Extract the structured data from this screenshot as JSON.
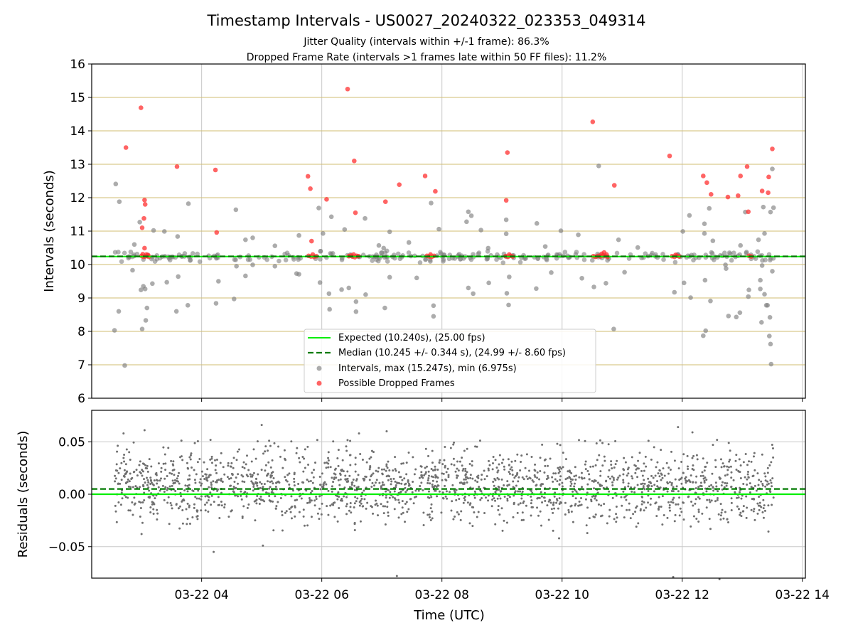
{
  "chart_data": [
    {
      "type": "scatter",
      "title": "Timestamp Intervals - US0027_20240322_023353_049314",
      "subtitle_lines": [
        "Jitter Quality (intervals within +/-1 frame): 86.3%",
        "Dropped Frame Rate (intervals >1 frames late within 50 FF files): 11.2%"
      ],
      "xlabel": "",
      "ylabel": "Intervals (seconds)",
      "xlim": [
        2.17,
        14.05
      ],
      "ylim": [
        6,
        16
      ],
      "yticks": [
        "6",
        "7",
        "8",
        "9",
        "10",
        "11",
        "12",
        "13",
        "14",
        "15",
        "16"
      ],
      "xticks": [
        {
          "value": 4,
          "label": "03-22 04"
        },
        {
          "value": 6,
          "label": "03-22 06"
        },
        {
          "value": 8,
          "label": "03-22 08"
        },
        {
          "value": 10,
          "label": "03-22 10"
        },
        {
          "value": 12,
          "label": "03-22 12"
        },
        {
          "value": 14,
          "label": "03-22 14"
        }
      ],
      "grid": true,
      "legend_position": "bottom-center",
      "colors": {
        "expected": "#00ee00",
        "median": "#007a00",
        "intervals": "#808080",
        "dropped": "#ff3030",
        "guides": "#d2bd72",
        "grid": "#c8c8c8"
      },
      "series": [
        {
          "name": "Expected (10.240s), (25.00 fps)",
          "kind": "line",
          "y": 10.24
        },
        {
          "name": "Median (10.245 +/- 0.344 s), (24.99 +/- 8.60 fps)",
          "kind": "dashed-line",
          "y": 10.245
        },
        {
          "name": "Intervals, max (15.247s), min (6.975s)",
          "kind": "scatter",
          "band": {
            "y": 10.24,
            "count": 260,
            "spread": 0.12
          },
          "points": [
            [
              2.57,
              12.41
            ],
            [
              2.63,
              11.88
            ],
            [
              2.55,
              8.03
            ],
            [
              2.62,
              8.6
            ],
            [
              2.72,
              6.98
            ],
            [
              2.85,
              9.83
            ],
            [
              2.88,
              10.6
            ],
            [
              2.97,
              11.27
            ],
            [
              2.99,
              9.24
            ],
            [
              3.01,
              8.07
            ],
            [
              3.03,
              9.35
            ],
            [
              3.06,
              9.27
            ],
            [
              3.07,
              8.33
            ],
            [
              3.09,
              8.7
            ],
            [
              3.18,
              9.43
            ],
            [
              3.2,
              11.02
            ],
            [
              3.38,
              10.99
            ],
            [
              3.42,
              9.47
            ],
            [
              3.6,
              10.84
            ],
            [
              3.61,
              9.64
            ],
            [
              3.58,
              8.6
            ],
            [
              3.77,
              8.78
            ],
            [
              3.78,
              11.82
            ],
            [
              4.24,
              8.84
            ],
            [
              4.28,
              9.5
            ],
            [
              4.57,
              11.64
            ],
            [
              4.54,
              8.97
            ],
            [
              4.58,
              9.95
            ],
            [
              4.73,
              9.66
            ],
            [
              4.73,
              10.74
            ],
            [
              4.85,
              9.99
            ],
            [
              4.85,
              10.8
            ],
            [
              5.22,
              9.95
            ],
            [
              5.22,
              10.56
            ],
            [
              5.58,
              9.73
            ],
            [
              5.62,
              9.71
            ],
            [
              5.62,
              10.87
            ],
            [
              5.98,
              10.4
            ],
            [
              5.97,
              9.46
            ],
            [
              5.95,
              11.69
            ],
            [
              6.02,
              10.93
            ],
            [
              6.12,
              9.13
            ],
            [
              6.13,
              8.66
            ],
            [
              6.16,
              11.43
            ],
            [
              6.33,
              9.25
            ],
            [
              6.38,
              11.05
            ],
            [
              6.45,
              9.3
            ],
            [
              6.57,
              8.89
            ],
            [
              6.57,
              8.59
            ],
            [
              6.72,
              11.38
            ],
            [
              6.73,
              9.1
            ],
            [
              6.95,
              10.57
            ],
            [
              7.03,
              10.49
            ],
            [
              7.05,
              8.7
            ],
            [
              7.13,
              9.62
            ],
            [
              7.13,
              10.98
            ],
            [
              7.45,
              10.66
            ],
            [
              7.58,
              9.6
            ],
            [
              7.82,
              11.84
            ],
            [
              7.86,
              8.77
            ],
            [
              7.86,
              8.45
            ],
            [
              7.95,
              11.06
            ],
            [
              8.01,
              10.23
            ],
            [
              8.41,
              11.28
            ],
            [
              8.44,
              11.58
            ],
            [
              8.44,
              9.3
            ],
            [
              8.49,
              11.46
            ],
            [
              8.52,
              9.13
            ],
            [
              8.65,
              11.03
            ],
            [
              8.77,
              10.49
            ],
            [
              8.78,
              9.45
            ],
            [
              9.07,
              11.34
            ],
            [
              9.07,
              10.92
            ],
            [
              9.08,
              9.14
            ],
            [
              9.11,
              8.79
            ],
            [
              9.12,
              9.63
            ],
            [
              9.58,
              11.23
            ],
            [
              9.57,
              9.28
            ],
            [
              9.72,
              10.54
            ],
            [
              9.82,
              9.76
            ],
            [
              9.98,
              11.01
            ],
            [
              10.27,
              10.89
            ],
            [
              10.33,
              9.59
            ],
            [
              10.53,
              9.33
            ],
            [
              10.61,
              12.95
            ],
            [
              10.73,
              9.44
            ],
            [
              10.78,
              10.18
            ],
            [
              10.86,
              8.07
            ],
            [
              10.94,
              10.74
            ],
            [
              11.04,
              9.77
            ],
            [
              11.26,
              10.51
            ],
            [
              11.87,
              9.17
            ],
            [
              12.01,
              10.99
            ],
            [
              12.03,
              9.45
            ],
            [
              12.12,
              11.47
            ],
            [
              12.14,
              9.01
            ],
            [
              12.35,
              7.87
            ],
            [
              12.39,
              8.02
            ],
            [
              12.38,
              9.53
            ],
            [
              12.37,
              11.22
            ],
            [
              12.37,
              10.93
            ],
            [
              12.45,
              11.68
            ],
            [
              12.47,
              8.91
            ],
            [
              12.51,
              10.71
            ],
            [
              12.72,
              9.99
            ],
            [
              12.73,
              9.88
            ],
            [
              12.77,
              8.46
            ],
            [
              12.9,
              8.43
            ],
            [
              12.96,
              8.56
            ],
            [
              12.97,
              10.57
            ],
            [
              13.05,
              11.57
            ],
            [
              13.07,
              10.37
            ],
            [
              13.1,
              9.04
            ],
            [
              13.11,
              9.24
            ],
            [
              13.27,
              10.74
            ],
            [
              13.3,
              9.27
            ],
            [
              13.32,
              8.27
            ],
            [
              13.35,
              11.72
            ],
            [
              13.37,
              10.93
            ],
            [
              13.37,
              9.11
            ],
            [
              13.42,
              8.78
            ],
            [
              13.45,
              7.86
            ],
            [
              13.47,
              7.62
            ],
            [
              13.46,
              8.42
            ],
            [
              13.48,
              7.02
            ],
            [
              13.5,
              9.8
            ],
            [
              13.52,
              11.7
            ],
            [
              13.4,
              8.78
            ],
            [
              13.47,
              11.57
            ],
            [
              13.5,
              12.86
            ],
            [
              13.3,
              9.53
            ],
            [
              13.33,
              9.97
            ]
          ]
        },
        {
          "name": "Possible Dropped Frames",
          "kind": "scatter",
          "points": [
            [
              2.74,
              13.5
            ],
            [
              2.99,
              14.69
            ],
            [
              3.05,
              11.93
            ],
            [
              3.06,
              11.8
            ],
            [
              3.04,
              11.38
            ],
            [
              3.01,
              11.1
            ],
            [
              3.05,
              10.49
            ],
            [
              3.0,
              10.26
            ],
            [
              3.03,
              10.23
            ],
            [
              3.06,
              10.24
            ],
            [
              3.09,
              10.26
            ],
            [
              3.12,
              10.23
            ],
            [
              3.02,
              10.31
            ],
            [
              3.08,
              10.3
            ],
            [
              3.11,
              10.28
            ],
            [
              3.59,
              12.93
            ],
            [
              4.23,
              12.83
            ],
            [
              4.25,
              10.96
            ],
            [
              5.77,
              12.64
            ],
            [
              5.81,
              12.27
            ],
            [
              5.83,
              10.7
            ],
            [
              5.78,
              10.26
            ],
            [
              5.82,
              10.24
            ],
            [
              5.87,
              10.23
            ],
            [
              5.91,
              10.25
            ],
            [
              5.85,
              10.3
            ],
            [
              6.08,
              11.95
            ],
            [
              6.43,
              15.25
            ],
            [
              6.54,
              13.1
            ],
            [
              6.56,
              11.55
            ],
            [
              6.45,
              10.25
            ],
            [
              6.48,
              10.27
            ],
            [
              6.51,
              10.24
            ],
            [
              6.55,
              10.22
            ],
            [
              6.58,
              10.26
            ],
            [
              6.61,
              10.25
            ],
            [
              6.53,
              10.3
            ],
            [
              7.06,
              11.88
            ],
            [
              7.29,
              12.39
            ],
            [
              7.72,
              12.65
            ],
            [
              7.89,
              12.19
            ],
            [
              7.75,
              10.26
            ],
            [
              7.79,
              10.24
            ],
            [
              7.83,
              10.23
            ],
            [
              7.87,
              10.26
            ],
            [
              7.81,
              10.3
            ],
            [
              9.09,
              13.35
            ],
            [
              9.07,
              11.92
            ],
            [
              9.06,
              10.25
            ],
            [
              9.1,
              10.23
            ],
            [
              9.14,
              10.26
            ],
            [
              9.18,
              10.24
            ],
            [
              9.12,
              10.3
            ],
            [
              10.51,
              14.27
            ],
            [
              10.87,
              12.37
            ],
            [
              10.52,
              10.25
            ],
            [
              10.56,
              10.23
            ],
            [
              10.6,
              10.26
            ],
            [
              10.64,
              10.24
            ],
            [
              10.68,
              10.27
            ],
            [
              10.72,
              10.25
            ],
            [
              10.76,
              10.23
            ],
            [
              10.7,
              10.36
            ],
            [
              10.66,
              10.32
            ],
            [
              10.74,
              10.3
            ],
            [
              11.79,
              13.25
            ],
            [
              11.83,
              10.25
            ],
            [
              11.87,
              10.23
            ],
            [
              11.91,
              10.26
            ],
            [
              11.95,
              10.24
            ],
            [
              11.89,
              10.29
            ],
            [
              12.35,
              12.65
            ],
            [
              12.41,
              12.45
            ],
            [
              12.48,
              12.1
            ],
            [
              12.76,
              12.02
            ],
            [
              12.93,
              12.06
            ],
            [
              12.97,
              12.65
            ],
            [
              13.08,
              12.93
            ],
            [
              13.1,
              11.58
            ],
            [
              13.11,
              10.26
            ],
            [
              13.15,
              10.24
            ],
            [
              13.33,
              12.2
            ],
            [
              13.43,
              12.15
            ],
            [
              13.44,
              12.62
            ],
            [
              13.5,
              13.46
            ]
          ]
        }
      ]
    },
    {
      "type": "scatter",
      "title": "",
      "ylabel": "Residuals (seconds)",
      "xlabel": "Time (UTC)",
      "xlim": [
        2.17,
        14.05
      ],
      "ylim": [
        -0.08,
        0.08
      ],
      "yticks": [
        {
          "value": 0.05,
          "label": "0.05"
        },
        {
          "value": 0.0,
          "label": "0.00"
        },
        {
          "value": -0.05,
          "label": "−0.05"
        }
      ],
      "grid": true,
      "series": [
        {
          "name": "",
          "kind": "line",
          "y": 0.0,
          "color": "#00ee00"
        },
        {
          "name": "",
          "kind": "dashed-line",
          "y": 0.005,
          "color": "#007a00"
        },
        {
          "name": "",
          "kind": "scatter",
          "color": "#707070",
          "density": {
            "x_range": [
              2.55,
              13.52
            ],
            "count": 1900,
            "center": 0.008,
            "spread": 0.017
          },
          "outliers": [
            [
              2.7,
              0.058
            ],
            [
              3.0,
              -0.038
            ],
            [
              3.05,
              0.061
            ],
            [
              4.2,
              -0.055
            ],
            [
              5.0,
              0.066
            ],
            [
              5.02,
              -0.049
            ],
            [
              6.62,
              0.058
            ],
            [
              7.08,
              0.06
            ],
            [
              7.25,
              -0.078
            ],
            [
              9.95,
              -0.042
            ],
            [
              10.42,
              -0.037
            ],
            [
              11.93,
              0.064
            ],
            [
              11.85,
              -0.079
            ],
            [
              12.17,
              0.059
            ],
            [
              12.62,
              -0.081
            ]
          ]
        }
      ]
    }
  ]
}
